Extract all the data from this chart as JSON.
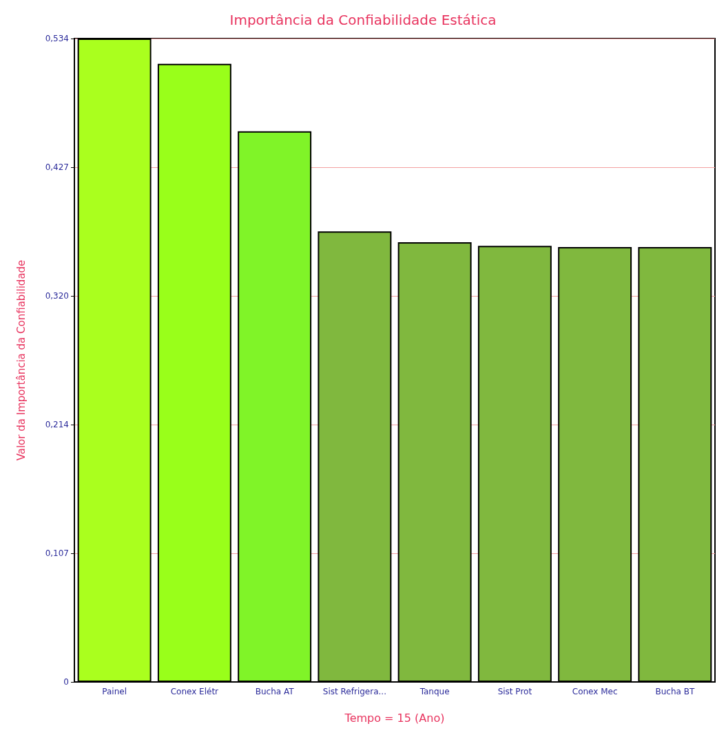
{
  "chart_data": {
    "type": "bar",
    "title": "Importância da Confiabilidade Estática",
    "xlabel": "Tempo = 15 (Ano)",
    "ylabel": "Valor da Importância da Confiabilidade",
    "categories": [
      "Painel",
      "Conex Elétr",
      "Bucha AT",
      "Sist Refrigera...",
      "Tanque",
      "Sist Prot",
      "Conex Mec",
      "Bucha BT"
    ],
    "values": [
      0.534,
      0.513,
      0.457,
      0.374,
      0.365,
      0.362,
      0.361,
      0.361
    ],
    "colors": [
      "#aaff1e",
      "#99ff1a",
      "#80f428",
      "#80b83e",
      "#80b83e",
      "#80b83e",
      "#80b83e",
      "#80b83e"
    ],
    "ylim": [
      0,
      0.534
    ],
    "yticks": [
      0,
      {
        "value": 0.107,
        "label": "0,107"
      },
      {
        "value": 0.214,
        "label": "0,214"
      },
      {
        "value": 0.32,
        "label": "0,320"
      },
      {
        "value": 0.427,
        "label": "0,427"
      },
      {
        "value": 0.534,
        "label": "0,534"
      }
    ],
    "grid": "y"
  }
}
